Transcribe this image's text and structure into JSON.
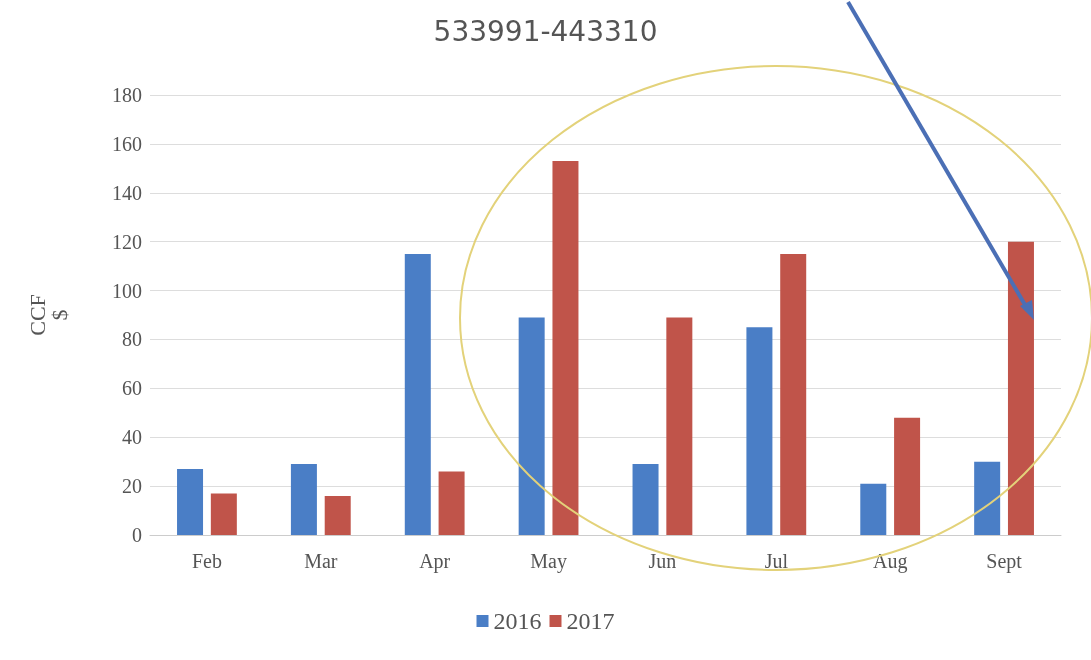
{
  "chart_data": {
    "type": "bar",
    "title": "533991-443310",
    "ylabel": "CCF\n$",
    "categories": [
      "Feb",
      "Mar",
      "Apr",
      "May",
      "Jun",
      "Jul",
      "Aug",
      "Sept"
    ],
    "series": [
      {
        "name": "2016",
        "color": "#4a7ec6",
        "values": [
          27,
          29,
          115,
          89,
          29,
          85,
          21,
          30
        ]
      },
      {
        "name": "2017",
        "color": "#c0544a",
        "values": [
          17,
          16,
          26,
          153,
          89,
          115,
          48,
          120
        ]
      }
    ],
    "ylim": [
      0,
      180
    ],
    "yticks": [
      0,
      20,
      40,
      60,
      80,
      100,
      120,
      140,
      160,
      180
    ],
    "grid": "y",
    "legend": "bottom"
  }
}
